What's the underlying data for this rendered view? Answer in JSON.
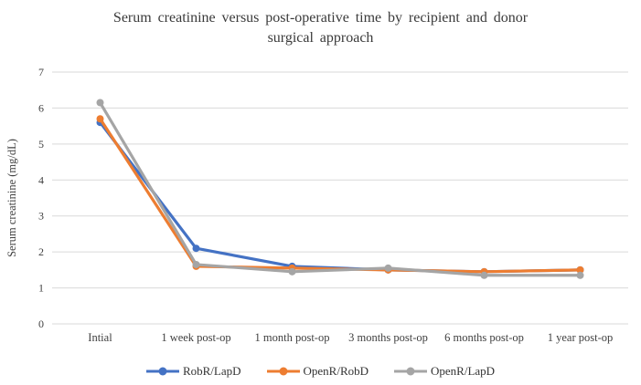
{
  "chart_data": {
    "type": "line",
    "title": "Serum creatinine versus post-operative time by recipient and donor surgical approach",
    "ylabel": "Serum creatinine (mg/dL)",
    "xlabel": "",
    "categories": [
      "Intial",
      "1 week post-op",
      "1 month post-op",
      "3 months post-op",
      "6 months post-op",
      "1 year post-op"
    ],
    "series": [
      {
        "name": "RobR/LapD",
        "color": "#4472C4",
        "values": [
          5.6,
          2.1,
          1.6,
          1.5,
          1.45,
          1.5
        ]
      },
      {
        "name": "OpenR/RobD",
        "color": "#ED7D31",
        "values": [
          5.7,
          1.6,
          1.55,
          1.5,
          1.45,
          1.5
        ]
      },
      {
        "name": "OpenR/LapD",
        "color": "#A5A5A5",
        "values": [
          6.15,
          1.65,
          1.45,
          1.55,
          1.35,
          1.35
        ]
      }
    ],
    "ylim": [
      0,
      7
    ],
    "yticks": [
      0,
      1,
      2,
      3,
      4,
      5,
      6,
      7
    ],
    "grid": true,
    "gridline_color": "#D9D9D9",
    "legend_position": "bottom",
    "marker": "circle",
    "background": "#ffffff"
  }
}
